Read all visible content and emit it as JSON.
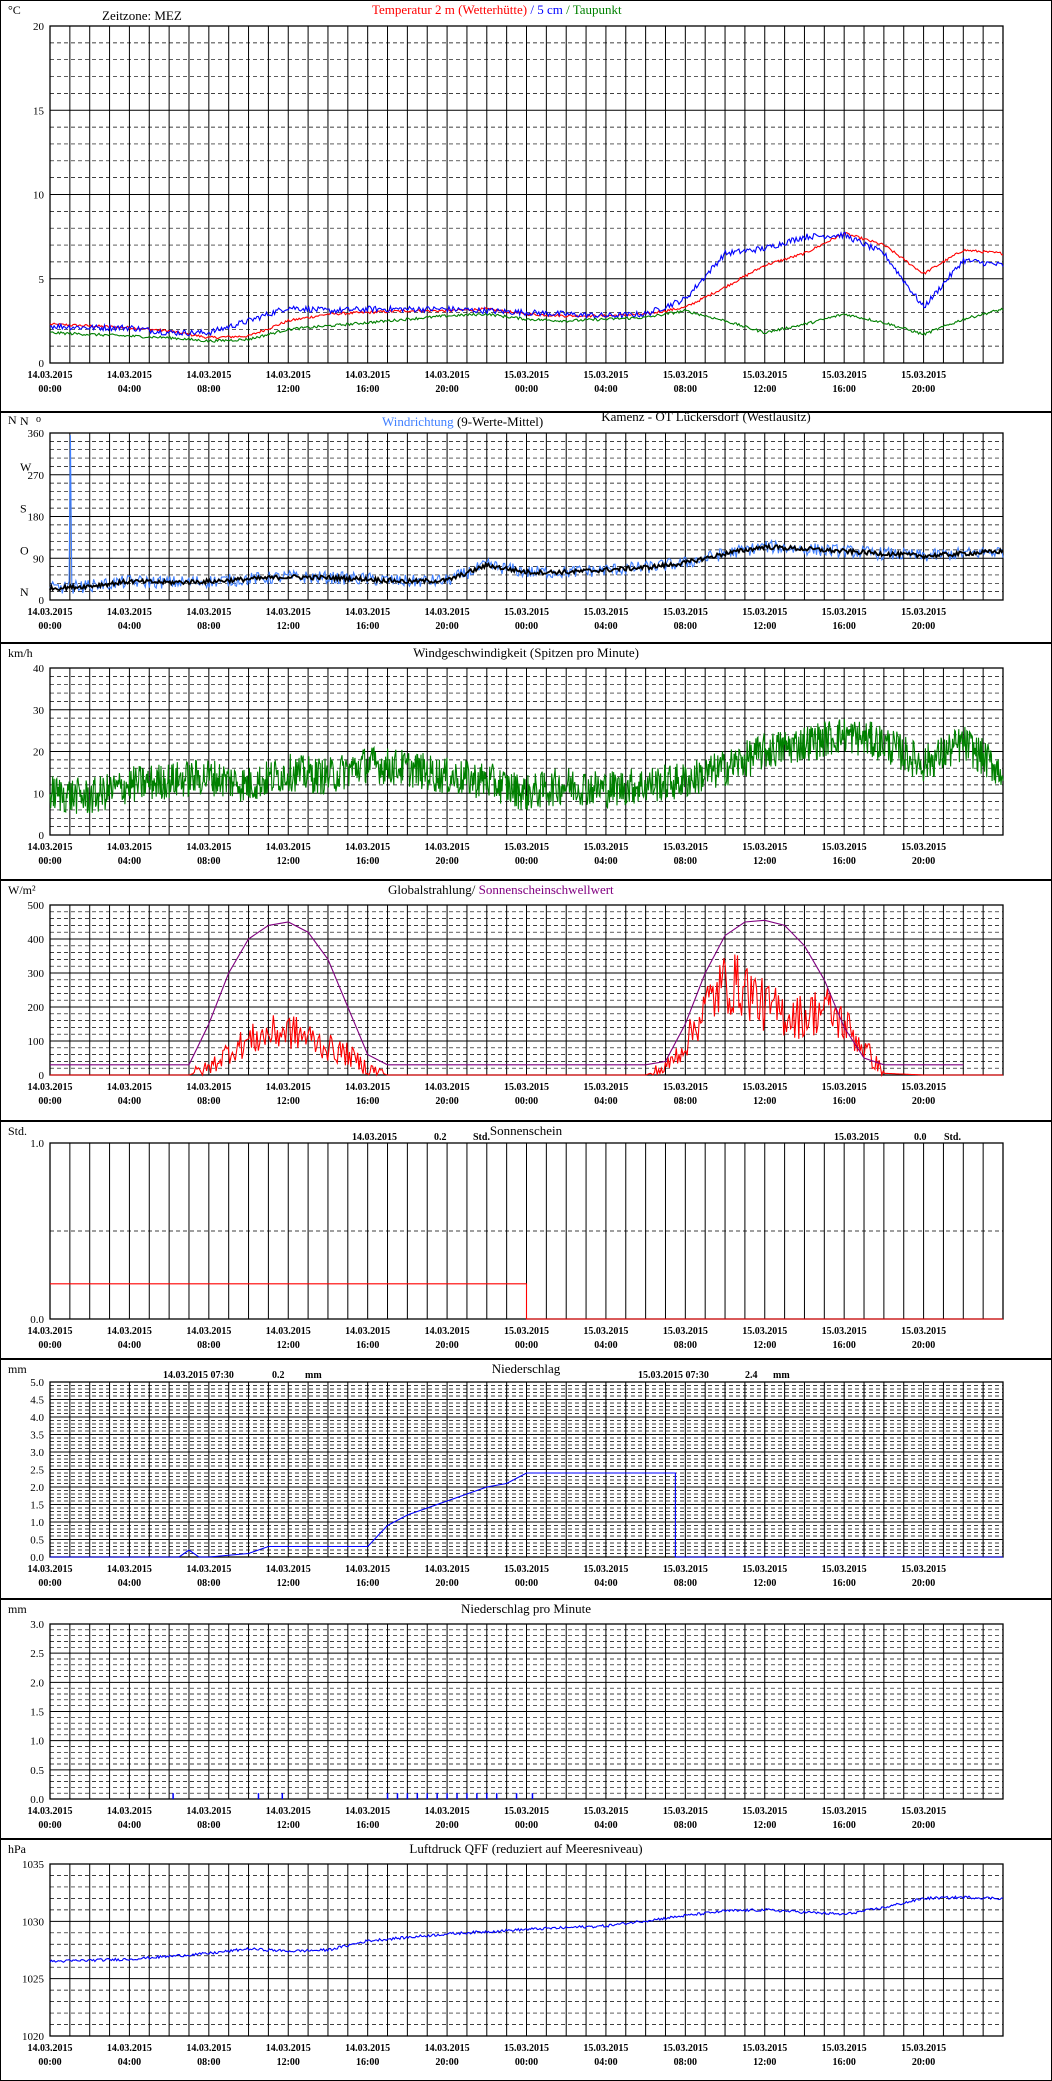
{
  "timezone": "Zeitzone: MEZ",
  "station": "Kamenz - OT Lückersdorf (Westlausitz)",
  "x_ticks": [
    [
      "14.03.2015",
      "00:00"
    ],
    [
      "14.03.2015",
      "04:00"
    ],
    [
      "14.03.2015",
      "08:00"
    ],
    [
      "14.03.2015",
      "12:00"
    ],
    [
      "14.03.2015",
      "16:00"
    ],
    [
      "14.03.2015",
      "20:00"
    ],
    [
      "15.03.2015",
      "00:00"
    ],
    [
      "15.03.2015",
      "04:00"
    ],
    [
      "15.03.2015",
      "08:00"
    ],
    [
      "15.03.2015",
      "12:00"
    ],
    [
      "15.03.2015",
      "16:00"
    ],
    [
      "15.03.2015",
      "20:00"
    ]
  ],
  "colors": {
    "red": "#ff0000",
    "blue": "#0000ff",
    "lightblue": "#3f7fff",
    "green": "#008000",
    "purple": "#800080",
    "black": "#000000"
  },
  "chart_data": [
    {
      "type": "line",
      "unit": "°C",
      "title_parts": [
        {
          "text": "Temperatur 2 m (Wetterhütte)",
          "color": "#ff0000"
        },
        {
          "text": " / ",
          "color": "#0000ff"
        },
        {
          "text": "5 cm",
          "color": "#0000ff"
        },
        {
          "text": " / ",
          "color": "#008000"
        },
        {
          "text": "Taupunkt",
          "color": "#008000"
        }
      ],
      "ylim": [
        0,
        20
      ],
      "yticks": [
        "0",
        "5",
        "10",
        "15",
        "20"
      ],
      "x_hours": [
        0,
        2,
        4,
        6,
        8,
        10,
        12,
        14,
        16,
        18,
        20,
        22,
        24,
        26,
        28,
        30,
        32,
        34,
        36,
        38,
        40,
        42,
        44,
        46,
        48
      ],
      "series": [
        {
          "name": "Temperatur 2 m (Wetterhütte)",
          "color": "#ff0000",
          "values": [
            2.3,
            2.2,
            2.1,
            1.9,
            1.5,
            1.6,
            2.5,
            2.9,
            3.0,
            3.1,
            3.1,
            3.2,
            2.9,
            2.8,
            2.8,
            2.9,
            3.3,
            4.5,
            5.8,
            6.5,
            7.7,
            7.0,
            5.3,
            6.7,
            6.5
          ]
        },
        {
          "name": "5 cm",
          "color": "#0000ff",
          "values": [
            2.2,
            2.1,
            2.1,
            1.8,
            1.8,
            2.5,
            3.3,
            3.1,
            3.2,
            3.2,
            3.2,
            3.1,
            3.0,
            2.9,
            2.8,
            2.9,
            3.8,
            6.5,
            6.8,
            7.5,
            7.6,
            6.5,
            3.3,
            6.1,
            5.8
          ]
        },
        {
          "name": "Taupunkt",
          "color": "#008000",
          "values": [
            1.8,
            1.7,
            1.6,
            1.5,
            1.3,
            1.4,
            2.0,
            2.2,
            2.4,
            2.6,
            2.8,
            2.9,
            2.6,
            2.5,
            2.6,
            2.7,
            3.1,
            2.5,
            1.8,
            2.3,
            2.9,
            2.4,
            1.7,
            2.6,
            3.2
          ]
        }
      ]
    },
    {
      "type": "line",
      "unit": "N",
      "degree_mark": "o",
      "title_parts": [
        {
          "text": "Windrichtung",
          "color": "#3f7fff"
        },
        {
          "text": " (9-Werte-Mittel)",
          "color": "#000000"
        }
      ],
      "ylim": [
        0,
        360
      ],
      "yticks": [
        "0",
        "90",
        "180",
        "270",
        "360"
      ],
      "direction_labels": [
        "N",
        "O",
        "S",
        "W",
        "N"
      ],
      "x_hours": [
        0,
        2,
        4,
        6,
        8,
        10,
        12,
        14,
        16,
        18,
        20,
        22,
        24,
        26,
        28,
        30,
        32,
        34,
        36,
        38,
        40,
        42,
        44,
        46,
        48
      ],
      "series": [
        {
          "name": "Windrichtung",
          "color": "#3f7fff",
          "values": [
            25,
            30,
            40,
            38,
            40,
            45,
            50,
            48,
            45,
            40,
            42,
            75,
            60,
            60,
            65,
            70,
            80,
            100,
            115,
            110,
            105,
            100,
            95,
            100,
            105
          ]
        },
        {
          "name": "9-Werte-Mittel",
          "color": "#000000",
          "values": [
            25,
            30,
            40,
            38,
            40,
            45,
            50,
            48,
            45,
            40,
            42,
            75,
            60,
            60,
            65,
            70,
            80,
            100,
            115,
            110,
            105,
            100,
            95,
            100,
            105
          ]
        }
      ]
    },
    {
      "type": "line",
      "unit": "km/h",
      "title": "Windgeschwindigkeit (Spitzen pro Minute)",
      "ylim": [
        0,
        40
      ],
      "yticks": [
        "0",
        "10",
        "20",
        "30",
        "40"
      ],
      "x_hours": [
        0,
        2,
        4,
        6,
        8,
        10,
        12,
        14,
        16,
        18,
        20,
        22,
        24,
        26,
        28,
        30,
        32,
        34,
        36,
        38,
        40,
        42,
        44,
        46,
        48
      ],
      "series": [
        {
          "name": "Windgeschwindigkeit",
          "color": "#008000",
          "values": [
            10,
            9,
            12,
            13,
            14,
            12,
            15,
            14,
            17,
            16,
            14,
            13,
            10,
            12,
            11,
            12,
            13,
            16,
            20,
            22,
            24,
            22,
            17,
            22,
            15
          ]
        }
      ]
    },
    {
      "type": "line",
      "unit": "W/m²",
      "title_parts": [
        {
          "text": "Globalstrahlung/",
          "color": "#000000"
        },
        {
          "text": " Sonnenscheinschwellwert",
          "color": "#800080"
        }
      ],
      "ylim": [
        0,
        500
      ],
      "yticks": [
        "0",
        "100",
        "200",
        "300",
        "400",
        "500"
      ],
      "x_hours": [
        0,
        2,
        4,
        6,
        7,
        8,
        9,
        10,
        11,
        12,
        13,
        14,
        15,
        16,
        17,
        18,
        20,
        22,
        24,
        26,
        28,
        30,
        31,
        32,
        33,
        34,
        35,
        36,
        37,
        38,
        39,
        40,
        41,
        42,
        44,
        46
      ],
      "series": [
        {
          "name": "Globalstrahlung",
          "color": "#ff0000",
          "values": [
            0,
            0,
            0,
            0,
            0,
            20,
            70,
            100,
            120,
            130,
            110,
            80,
            60,
            20,
            0,
            0,
            0,
            0,
            0,
            0,
            0,
            0,
            20,
            90,
            200,
            270,
            260,
            200,
            180,
            170,
            200,
            150,
            80,
            5,
            0,
            0
          ]
        },
        {
          "name": "Sonnenscheinschwellwert",
          "color": "#800080",
          "values": [
            30,
            30,
            30,
            30,
            30,
            150,
            300,
            400,
            440,
            450,
            420,
            340,
            200,
            60,
            30,
            30,
            30,
            30,
            30,
            30,
            30,
            30,
            40,
            150,
            300,
            410,
            450,
            455,
            440,
            380,
            280,
            140,
            50,
            30,
            30,
            30
          ]
        }
      ]
    },
    {
      "type": "line",
      "unit": "Std.",
      "title": "Sonnenschein",
      "ylim": [
        0,
        1
      ],
      "yticks": [
        "0.0",
        "1.0"
      ],
      "daily_totals": [
        {
          "date": "14.03.2015",
          "value": "0.2",
          "unit": "Std."
        },
        {
          "date": "15.03.2015",
          "value": "0.0",
          "unit": "Std."
        }
      ],
      "x_hours": [
        0,
        24,
        24,
        48
      ],
      "series": [
        {
          "name": "Sonnenschein",
          "color": "#ff0000",
          "values": [
            0.2,
            0.2,
            0.0,
            0.0
          ]
        }
      ]
    },
    {
      "type": "line",
      "unit": "mm",
      "title": "Niederschlag",
      "ylim": [
        0,
        5
      ],
      "yticks": [
        "0.0",
        "0.5",
        "1.0",
        "1.5",
        "2.0",
        "2.5",
        "3.0",
        "3.5",
        "4.0",
        "4.5",
        "5.0"
      ],
      "daily_totals": [
        {
          "date": "14.03.2015 07:30",
          "value": "0.2",
          "unit": "mm"
        },
        {
          "date": "15.03.2015 07:30",
          "value": "2.4",
          "unit": "mm"
        }
      ],
      "x_hours": [
        0,
        6.5,
        7,
        7.5,
        8,
        10,
        11,
        16,
        17,
        18,
        19,
        20,
        21,
        22,
        23,
        24,
        31.5,
        31.5,
        48
      ],
      "series": [
        {
          "name": "Niederschlag",
          "color": "#0000ff",
          "values": [
            0,
            0,
            0.2,
            0,
            0,
            0.1,
            0.3,
            0.3,
            0.9,
            1.2,
            1.4,
            1.6,
            1.8,
            2.0,
            2.1,
            2.4,
            2.4,
            0,
            0
          ]
        }
      ]
    },
    {
      "type": "bar",
      "unit": "mm",
      "title": "Niederschlag pro Minute",
      "ylim": [
        0,
        3
      ],
      "yticks": [
        "0.0",
        "0.5",
        "1.0",
        "1.5",
        "2.0",
        "2.5",
        "3.0"
      ],
      "x_hours": [
        6.2,
        10.5,
        11.7,
        17.0,
        17.5,
        18.0,
        18.5,
        19.0,
        19.5,
        20.0,
        20.5,
        21.0,
        21.5,
        22.0,
        22.5,
        23.5,
        24.3
      ],
      "series": [
        {
          "name": "Niederschlag pro Minute",
          "color": "#0000ff",
          "values": [
            0.1,
            0.1,
            0.1,
            0.1,
            0.1,
            0.1,
            0.1,
            0.1,
            0.1,
            0.1,
            0.1,
            0.1,
            0.1,
            0.1,
            0.1,
            0.1,
            0.1
          ]
        }
      ]
    },
    {
      "type": "line",
      "unit": "hPa",
      "title": "Luftdruck QFF (reduziert auf Meeresniveau)",
      "ylim": [
        1020,
        1035
      ],
      "yticks": [
        "1020",
        "1025",
        "1030",
        "1035"
      ],
      "x_hours": [
        0,
        4,
        8,
        10,
        12,
        14,
        16,
        20,
        24,
        28,
        32,
        34,
        36,
        40,
        42,
        44,
        46,
        48
      ],
      "series": [
        {
          "name": "Luftdruck QFF",
          "color": "#0000ff",
          "values": [
            1026.5,
            1026.7,
            1027.2,
            1027.6,
            1027.4,
            1027.5,
            1028.3,
            1028.9,
            1029.3,
            1029.6,
            1030.5,
            1030.9,
            1031.0,
            1030.6,
            1031.2,
            1032.0,
            1032.1,
            1032.0
          ]
        }
      ]
    }
  ]
}
